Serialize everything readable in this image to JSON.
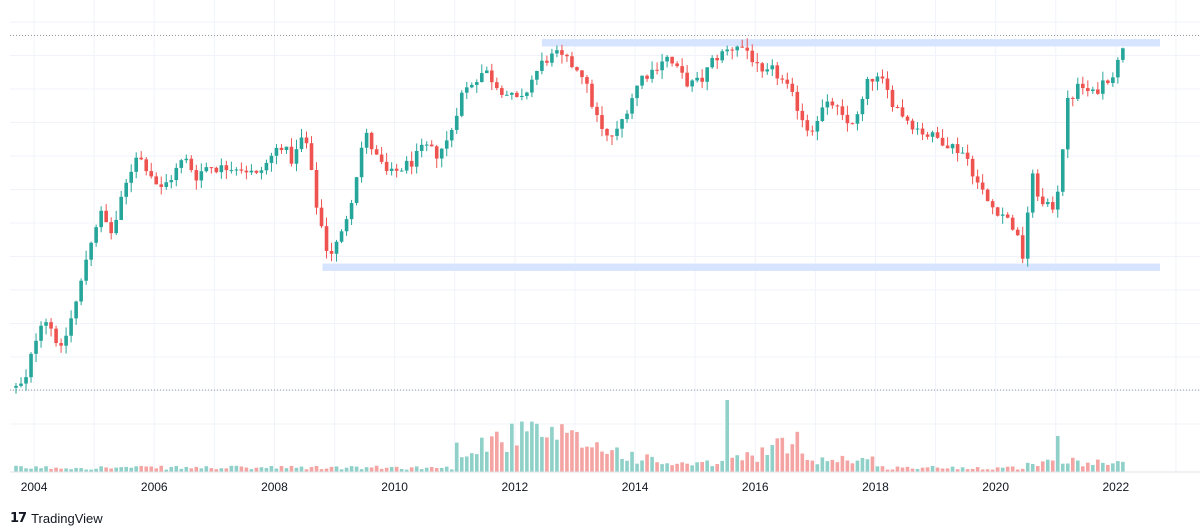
{
  "chart_data": {
    "type": "candlestick",
    "x_axis": {
      "ticks": [
        "2004",
        "2006",
        "2008",
        "2010",
        "2012",
        "2014",
        "2016",
        "2018",
        "2020",
        "2022"
      ],
      "range": [
        2003.6,
        2023.4
      ]
    },
    "price_axis": {
      "range": [
        0,
        100
      ],
      "labels_shown": false
    },
    "volume_axis": {
      "range": [
        0,
        100
      ],
      "labels_shown": false
    },
    "grid": true,
    "up_color": "#26a69a",
    "down_color": "#ef5350",
    "volume_up_color": "#8fd1c9",
    "volume_down_color": "#f4a4a2",
    "zone_color": "#d6e4ff",
    "dotted_line_color": "#9598a1",
    "zones": [
      {
        "from": 2012.45,
        "to": 2024.0,
        "lower": 95.5,
        "upper": 97.5
      },
      {
        "from": 2008.8,
        "to": 2024.0,
        "lower": 34.0,
        "upper": 36.0
      }
    ],
    "reference_lines": [
      {
        "pane": "price",
        "value": 98.5
      },
      {
        "pane": "volume",
        "value": 100
      }
    ],
    "price_path": [
      [
        2003.7,
        2
      ],
      [
        2003.85,
        3
      ],
      [
        2004.0,
        14
      ],
      [
        2004.15,
        22
      ],
      [
        2004.3,
        18
      ],
      [
        2004.45,
        12
      ],
      [
        2004.6,
        20
      ],
      [
        2004.75,
        28
      ],
      [
        2004.9,
        40
      ],
      [
        2005.1,
        50
      ],
      [
        2005.3,
        44
      ],
      [
        2005.5,
        56
      ],
      [
        2005.7,
        66
      ],
      [
        2005.9,
        62
      ],
      [
        2006.1,
        56
      ],
      [
        2006.3,
        60
      ],
      [
        2006.5,
        65
      ],
      [
        2006.7,
        60
      ],
      [
        2006.9,
        63
      ],
      [
        2007.1,
        62
      ],
      [
        2007.3,
        63
      ],
      [
        2007.5,
        62
      ],
      [
        2007.7,
        60
      ],
      [
        2007.9,
        64
      ],
      [
        2008.1,
        69
      ],
      [
        2008.3,
        64
      ],
      [
        2008.5,
        72
      ],
      [
        2008.7,
        52
      ],
      [
        2008.9,
        38
      ],
      [
        2009.1,
        43
      ],
      [
        2009.3,
        55
      ],
      [
        2009.5,
        72
      ],
      [
        2009.7,
        65
      ],
      [
        2009.9,
        60
      ],
      [
        2010.1,
        62
      ],
      [
        2010.3,
        64
      ],
      [
        2010.5,
        68
      ],
      [
        2010.7,
        66
      ],
      [
        2010.9,
        70
      ],
      [
        2011.1,
        82
      ],
      [
        2011.3,
        86
      ],
      [
        2011.5,
        89
      ],
      [
        2011.7,
        85
      ],
      [
        2011.9,
        82
      ],
      [
        2012.1,
        80
      ],
      [
        2012.3,
        87
      ],
      [
        2012.5,
        92
      ],
      [
        2012.7,
        93
      ],
      [
        2012.9,
        91
      ],
      [
        2013.1,
        89
      ],
      [
        2013.3,
        79
      ],
      [
        2013.5,
        70
      ],
      [
        2013.7,
        72
      ],
      [
        2013.9,
        80
      ],
      [
        2014.1,
        87
      ],
      [
        2014.3,
        89
      ],
      [
        2014.5,
        93
      ],
      [
        2014.7,
        89
      ],
      [
        2014.9,
        85
      ],
      [
        2015.1,
        86
      ],
      [
        2015.3,
        92
      ],
      [
        2015.5,
        94
      ],
      [
        2015.7,
        96
      ],
      [
        2015.9,
        94
      ],
      [
        2016.1,
        87
      ],
      [
        2016.3,
        89
      ],
      [
        2016.5,
        85
      ],
      [
        2016.7,
        79
      ],
      [
        2016.9,
        72
      ],
      [
        2017.1,
        78
      ],
      [
        2017.3,
        80
      ],
      [
        2017.5,
        74
      ],
      [
        2017.7,
        76
      ],
      [
        2017.9,
        87
      ],
      [
        2018.1,
        86
      ],
      [
        2018.3,
        80
      ],
      [
        2018.5,
        76
      ],
      [
        2018.7,
        73
      ],
      [
        2018.9,
        71
      ],
      [
        2019.1,
        70
      ],
      [
        2019.3,
        68
      ],
      [
        2019.5,
        66
      ],
      [
        2019.7,
        58
      ],
      [
        2019.9,
        52
      ],
      [
        2020.1,
        50
      ],
      [
        2020.3,
        46
      ],
      [
        2020.45,
        38
      ],
      [
        2020.6,
        60
      ],
      [
        2020.8,
        51
      ],
      [
        2021.0,
        52
      ],
      [
        2021.2,
        80
      ],
      [
        2021.4,
        85
      ],
      [
        2021.6,
        82
      ],
      [
        2021.8,
        86
      ],
      [
        2022.0,
        89
      ],
      [
        2022.15,
        98
      ]
    ]
  },
  "footer": {
    "logo_mark": "17",
    "brand": "TradingView"
  }
}
